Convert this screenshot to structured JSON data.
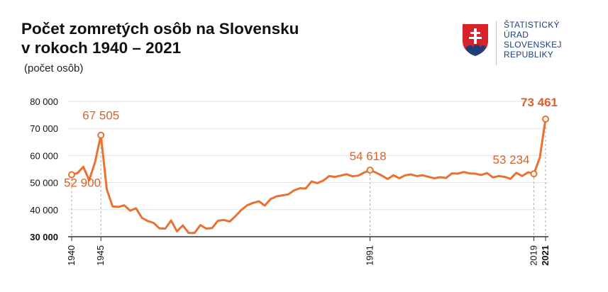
{
  "header": {
    "title_line1": "Počet zomretých osôb na Slovensku",
    "title_line2": "v rokoch 1940 – 2021",
    "subtitle": "(počet osôb)"
  },
  "logo": {
    "org_line1": "ŠTATISTICKÝ",
    "org_line2": "ÚRAD",
    "org_line3": "SLOVENSKEJ",
    "org_line4": "REPUBLIKY"
  },
  "colors": {
    "line": "#e8722f",
    "label": "#d9622b",
    "grid": "#e3e3e3",
    "guide": "#aaaaaa",
    "text": "#111111",
    "logo_blue": "#1e3f7a",
    "logo_red": "#d6232a"
  },
  "chart_data": {
    "type": "line",
    "title": "Počet zomretých osôb na Slovensku v rokoch 1940 – 2021",
    "subtitle": "(počet osôb)",
    "xlabel": "",
    "ylabel": "",
    "xlim": [
      1940,
      2021
    ],
    "ylim": [
      30000,
      80000
    ],
    "y_ticks": [
      "30 000",
      "40 000",
      "50 000",
      "60 000",
      "70 000",
      "80 000"
    ],
    "y_tick_values": [
      30000,
      40000,
      50000,
      60000,
      70000,
      80000
    ],
    "x_ticks": [
      "1940",
      "1945",
      "1991",
      "2019",
      "2021"
    ],
    "x_tick_values": [
      1940,
      1945,
      1991,
      2019,
      2021
    ],
    "grid": "horizontal",
    "series": [
      {
        "values": [
          52900,
          53500,
          55800,
          50800,
          57600,
          67505,
          47500,
          41200,
          41000,
          41600,
          39600,
          40500,
          37000,
          35800,
          35100,
          33100,
          33000,
          36000,
          32000,
          34200,
          31400,
          31400,
          34300,
          33000,
          33200,
          35900,
          36200,
          35600,
          37600,
          39900,
          41600,
          42500,
          43100,
          41500,
          43900,
          44900,
          45300,
          45600,
          47100,
          47900,
          47800,
          50400,
          49800,
          50700,
          52400,
          52100,
          52600,
          53100,
          52300,
          52600,
          53700,
          54618,
          53700,
          52600,
          51300,
          52700,
          51600,
          52700,
          53000,
          52400,
          52700,
          52100,
          51600,
          52000,
          51700,
          53400,
          53300,
          53900,
          53400,
          53300,
          52800,
          53500,
          51900,
          52400,
          52100,
          51400,
          53600,
          52400,
          53800,
          53234,
          59100,
          73461
        ]
      }
    ],
    "annotations": [
      {
        "year": 1940,
        "value": 52900,
        "label": "52 900"
      },
      {
        "year": 1945,
        "value": 67505,
        "label": "67 505"
      },
      {
        "year": 1991,
        "value": 54618,
        "label": "54 618"
      },
      {
        "year": 2019,
        "value": 53234,
        "label": "53 234"
      },
      {
        "year": 2021,
        "value": 73461,
        "label": "73 461"
      }
    ]
  }
}
